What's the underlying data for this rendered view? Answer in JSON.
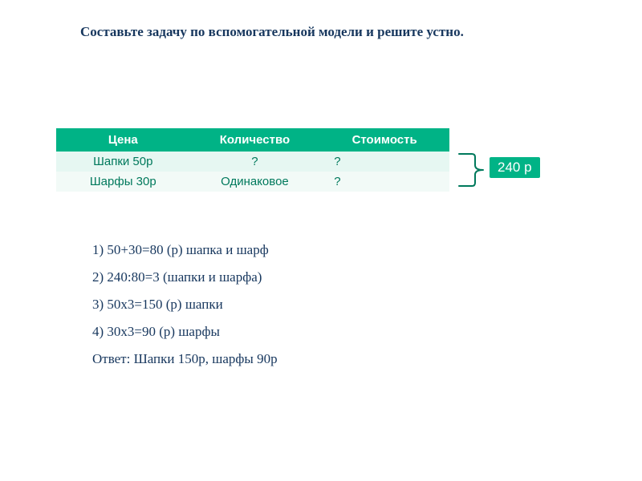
{
  "title": "Составьте задачу по вспомогательной модели и решите устно.",
  "title_fontsize": 17,
  "title_color": "#17375e",
  "table": {
    "header_bg": "#00b386",
    "header_fg": "#ffffff",
    "row_bg_alt": [
      "#e6f7f2",
      "#f2faf7"
    ],
    "row_fg": "#00795c",
    "fontsize": 15,
    "col_widths": [
      "34%",
      "33%",
      "33%"
    ],
    "columns": [
      "Цена",
      "Количество",
      "Стоимость"
    ],
    "rows": [
      [
        "Шапки 50р",
        "?",
        "?"
      ],
      [
        "Шарфы 30р",
        "Одинаковое",
        "?"
      ]
    ]
  },
  "bracket": {
    "color": "#00795c",
    "stroke_width": 2
  },
  "badge": {
    "text": "240 р",
    "bg": "#00b386",
    "fg": "#ffffff",
    "fontsize": 17
  },
  "solution": {
    "fontsize": 17,
    "color": "#17375e",
    "lines": [
      "1) 50+30=80 (р) шапка и шарф",
      "2) 240:80=3 (шапки и шарфа)",
      "3) 50х3=150 (р) шапки",
      "4) 30х3=90 (р) шарфы",
      "Ответ: Шапки 150р, шарфы 90р"
    ]
  }
}
